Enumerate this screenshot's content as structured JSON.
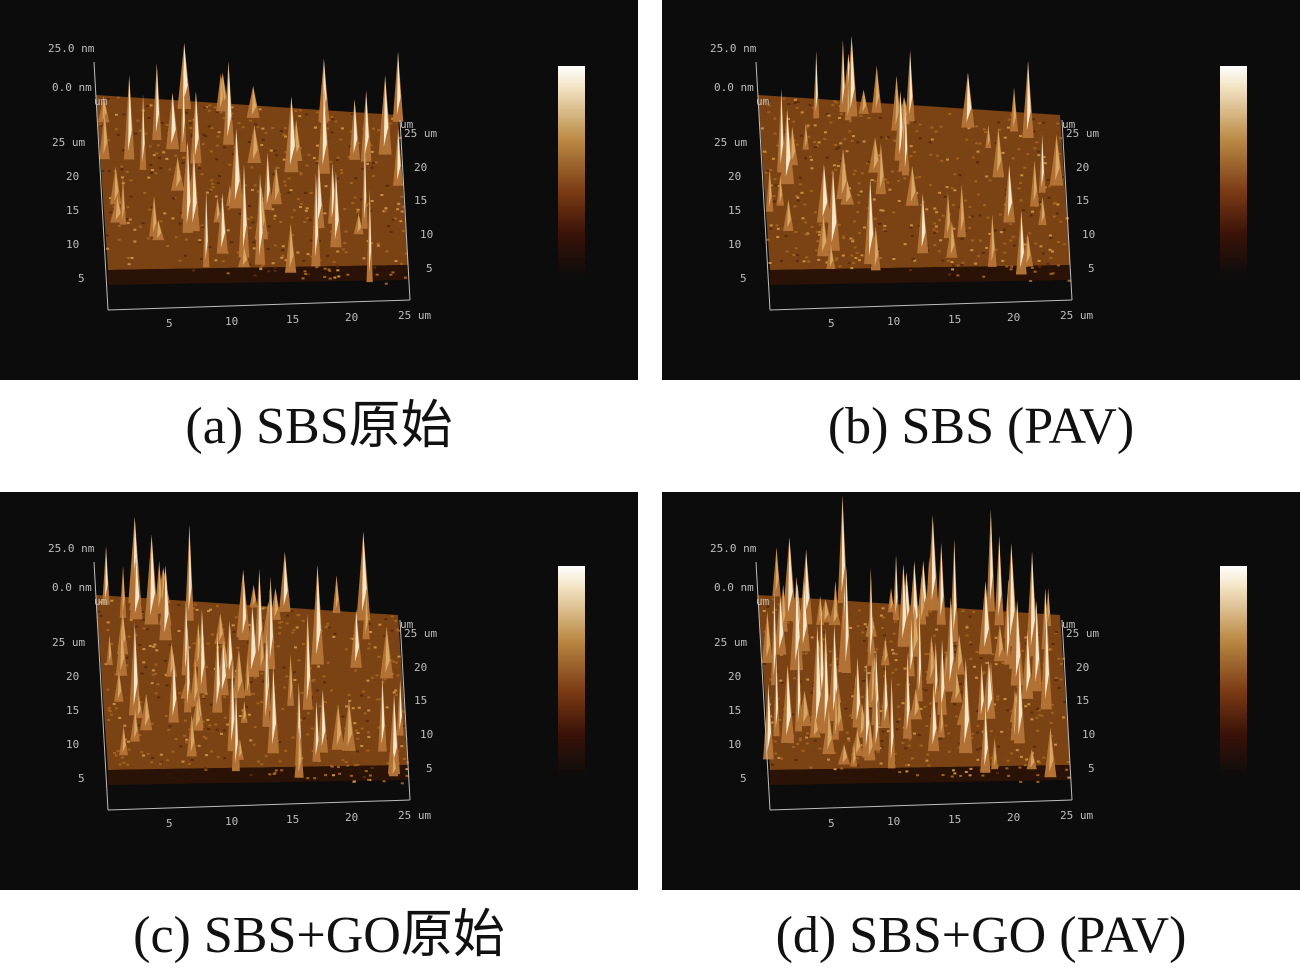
{
  "panels": [
    {
      "caption": "(a) SBS原始",
      "z_max_label": "25.0 nm",
      "z_min_label": "0.0 nm",
      "y_unit": "um",
      "x_unit": "um",
      "left_ticks": [
        "25 um",
        "20",
        "15",
        "10",
        "5"
      ],
      "right_ticks": [
        "25 um",
        "20",
        "15",
        "10",
        "5"
      ],
      "bottom_ticks": [
        "5",
        "10",
        "15",
        "20",
        "25 um"
      ]
    },
    {
      "caption": "(b) SBS (PAV)",
      "z_max_label": "25.0 nm",
      "z_min_label": "0.0 nm",
      "y_unit": "um",
      "x_unit": "um",
      "left_ticks": [
        "25 um",
        "20",
        "15",
        "10",
        "5"
      ],
      "right_ticks": [
        "25 um",
        "20",
        "15",
        "10",
        "5"
      ],
      "bottom_ticks": [
        "5",
        "10",
        "15",
        "20",
        "25 um"
      ]
    },
    {
      "caption": "(c) SBS+GO原始",
      "z_max_label": "25.0 nm",
      "z_min_label": "0.0 nm",
      "y_unit": "um",
      "x_unit": "um",
      "left_ticks": [
        "25 um",
        "20",
        "15",
        "10",
        "5"
      ],
      "right_ticks": [
        "25 um",
        "20",
        "15",
        "10",
        "5"
      ],
      "bottom_ticks": [
        "5",
        "10",
        "15",
        "20",
        "25 um"
      ]
    },
    {
      "caption": "(d) SBS+GO (PAV)",
      "z_max_label": "25.0 nm",
      "z_min_label": "0.0 nm",
      "y_unit": "um",
      "x_unit": "um",
      "left_ticks": [
        "25 um",
        "20",
        "15",
        "10",
        "5"
      ],
      "right_ticks": [
        "25 um",
        "20",
        "15",
        "10",
        "5"
      ],
      "bottom_ticks": [
        "5",
        "10",
        "15",
        "20",
        "25 um"
      ]
    }
  ],
  "colors": {
    "background": "#0c0c0c",
    "surface_dark": "#5a2a0c",
    "surface_mid": "#a0601e",
    "surface_light": "#f4e6c8",
    "axis": "#bdbdbd"
  }
}
